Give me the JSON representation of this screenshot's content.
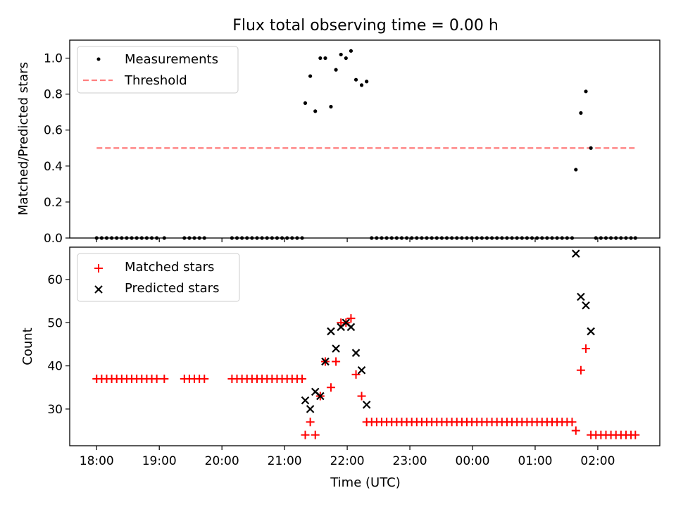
{
  "title": "Flux total observing time = 0.00 h",
  "colors": {
    "threshold": "#ff7f7f",
    "matched": "#ff0000",
    "predicted": "#000000",
    "measurement": "#000000"
  },
  "x_axis": {
    "label": "Time (UTC)",
    "unit": "hours since 18:00",
    "range": [
      -0.43,
      8.99
    ],
    "ticks": [
      {
        "v": 0,
        "label": "18:00"
      },
      {
        "v": 1,
        "label": "19:00"
      },
      {
        "v": 2,
        "label": "20:00"
      },
      {
        "v": 3,
        "label": "21:00"
      },
      {
        "v": 4,
        "label": "22:00"
      },
      {
        "v": 5,
        "label": "23:00"
      },
      {
        "v": 6,
        "label": "00:00"
      },
      {
        "v": 7,
        "label": "01:00"
      },
      {
        "v": 8,
        "label": "02:00"
      }
    ]
  },
  "chart_data": [
    {
      "type": "scatter",
      "ylabel": "Matched/Predicted stars",
      "ylim": [
        0,
        1.1
      ],
      "yticks": [
        0.0,
        0.2,
        0.4,
        0.6,
        0.8,
        1.0
      ],
      "ytick_labels": [
        "0.0",
        "0.2",
        "0.4",
        "0.6",
        "0.8",
        "1.0"
      ],
      "legend": {
        "position": "upper left",
        "entries": [
          "Measurements",
          "Threshold"
        ]
      },
      "threshold": {
        "name": "Threshold",
        "y": 0.5,
        "x": [
          0.0,
          8.6
        ]
      },
      "series": [
        {
          "name": "Measurements",
          "points": [
            [
              0.0,
              0
            ],
            [
              0.08,
              0
            ],
            [
              0.16,
              0
            ],
            [
              0.24,
              0
            ],
            [
              0.32,
              0
            ],
            [
              0.4,
              0
            ],
            [
              0.48,
              0
            ],
            [
              0.56,
              0
            ],
            [
              0.64,
              0
            ],
            [
              0.72,
              0
            ],
            [
              0.8,
              0
            ],
            [
              0.88,
              0
            ],
            [
              0.96,
              0
            ],
            [
              1.08,
              0
            ],
            [
              1.4,
              0
            ],
            [
              1.48,
              0
            ],
            [
              1.56,
              0
            ],
            [
              1.64,
              0
            ],
            [
              1.72,
              0
            ],
            [
              2.16,
              0
            ],
            [
              2.24,
              0
            ],
            [
              2.32,
              0
            ],
            [
              2.4,
              0
            ],
            [
              2.48,
              0
            ],
            [
              2.56,
              0
            ],
            [
              2.64,
              0
            ],
            [
              2.72,
              0
            ],
            [
              2.8,
              0
            ],
            [
              2.88,
              0
            ],
            [
              2.96,
              0
            ],
            [
              3.04,
              0
            ],
            [
              3.12,
              0
            ],
            [
              3.2,
              0
            ],
            [
              3.28,
              0
            ],
            [
              3.33,
              0.75
            ],
            [
              3.41,
              0.9
            ],
            [
              3.49,
              0.705
            ],
            [
              3.57,
              1.0
            ],
            [
              3.65,
              1.0
            ],
            [
              3.74,
              0.73
            ],
            [
              3.82,
              0.935
            ],
            [
              3.9,
              1.02
            ],
            [
              3.98,
              1.0
            ],
            [
              4.06,
              1.04
            ],
            [
              4.14,
              0.88
            ],
            [
              4.23,
              0.85
            ],
            [
              4.31,
              0.87
            ],
            [
              4.39,
              0
            ],
            [
              4.47,
              0
            ],
            [
              4.55,
              0
            ],
            [
              4.63,
              0
            ],
            [
              4.71,
              0
            ],
            [
              4.79,
              0
            ],
            [
              4.87,
              0
            ],
            [
              4.95,
              0
            ],
            [
              5.03,
              0
            ],
            [
              5.11,
              0
            ],
            [
              5.19,
              0
            ],
            [
              5.27,
              0
            ],
            [
              5.35,
              0
            ],
            [
              5.43,
              0
            ],
            [
              5.51,
              0
            ],
            [
              5.59,
              0
            ],
            [
              5.67,
              0
            ],
            [
              5.75,
              0
            ],
            [
              5.83,
              0
            ],
            [
              5.91,
              0
            ],
            [
              5.99,
              0
            ],
            [
              6.07,
              0
            ],
            [
              6.15,
              0
            ],
            [
              6.23,
              0
            ],
            [
              6.31,
              0
            ],
            [
              6.39,
              0
            ],
            [
              6.47,
              0
            ],
            [
              6.55,
              0
            ],
            [
              6.63,
              0
            ],
            [
              6.71,
              0
            ],
            [
              6.79,
              0
            ],
            [
              6.87,
              0
            ],
            [
              6.95,
              0
            ],
            [
              7.03,
              0
            ],
            [
              7.11,
              0
            ],
            [
              7.19,
              0
            ],
            [
              7.27,
              0
            ],
            [
              7.35,
              0
            ],
            [
              7.43,
              0
            ],
            [
              7.51,
              0
            ],
            [
              7.59,
              0
            ],
            [
              7.65,
              0.38
            ],
            [
              7.73,
              0.695
            ],
            [
              7.81,
              0.815
            ],
            [
              7.89,
              0.5
            ],
            [
              7.97,
              0
            ],
            [
              8.05,
              0
            ],
            [
              8.13,
              0
            ],
            [
              8.21,
              0
            ],
            [
              8.29,
              0
            ],
            [
              8.37,
              0
            ],
            [
              8.45,
              0
            ],
            [
              8.53,
              0
            ],
            [
              8.6,
              0
            ]
          ]
        }
      ]
    },
    {
      "type": "scatter",
      "ylabel": "Count",
      "ylim": [
        21.5,
        67.5
      ],
      "yticks": [
        30,
        40,
        50,
        60
      ],
      "ytick_labels": [
        "30",
        "40",
        "50",
        "60"
      ],
      "legend": {
        "position": "upper left",
        "entries": [
          "Matched stars",
          "Predicted stars"
        ]
      },
      "series": [
        {
          "name": "Matched stars",
          "points": [
            [
              0.0,
              37
            ],
            [
              0.08,
              37
            ],
            [
              0.16,
              37
            ],
            [
              0.24,
              37
            ],
            [
              0.32,
              37
            ],
            [
              0.4,
              37
            ],
            [
              0.48,
              37
            ],
            [
              0.56,
              37
            ],
            [
              0.64,
              37
            ],
            [
              0.72,
              37
            ],
            [
              0.8,
              37
            ],
            [
              0.88,
              37
            ],
            [
              0.96,
              37
            ],
            [
              1.08,
              37
            ],
            [
              1.4,
              37
            ],
            [
              1.48,
              37
            ],
            [
              1.56,
              37
            ],
            [
              1.64,
              37
            ],
            [
              1.72,
              37
            ],
            [
              2.16,
              37
            ],
            [
              2.24,
              37
            ],
            [
              2.32,
              37
            ],
            [
              2.4,
              37
            ],
            [
              2.48,
              37
            ],
            [
              2.56,
              37
            ],
            [
              2.64,
              37
            ],
            [
              2.72,
              37
            ],
            [
              2.8,
              37
            ],
            [
              2.88,
              37
            ],
            [
              2.96,
              37
            ],
            [
              3.04,
              37
            ],
            [
              3.12,
              37
            ],
            [
              3.2,
              37
            ],
            [
              3.28,
              37
            ],
            [
              3.33,
              24
            ],
            [
              3.41,
              27
            ],
            [
              3.49,
              24
            ],
            [
              3.57,
              33
            ],
            [
              3.65,
              41
            ],
            [
              3.74,
              35
            ],
            [
              3.82,
              41
            ],
            [
              3.9,
              50
            ],
            [
              3.98,
              50
            ],
            [
              4.06,
              51
            ],
            [
              4.14,
              38
            ],
            [
              4.23,
              33
            ],
            [
              4.31,
              27
            ],
            [
              4.39,
              27
            ],
            [
              4.47,
              27
            ],
            [
              4.55,
              27
            ],
            [
              4.63,
              27
            ],
            [
              4.71,
              27
            ],
            [
              4.79,
              27
            ],
            [
              4.87,
              27
            ],
            [
              4.95,
              27
            ],
            [
              5.03,
              27
            ],
            [
              5.11,
              27
            ],
            [
              5.19,
              27
            ],
            [
              5.27,
              27
            ],
            [
              5.35,
              27
            ],
            [
              5.43,
              27
            ],
            [
              5.51,
              27
            ],
            [
              5.59,
              27
            ],
            [
              5.67,
              27
            ],
            [
              5.75,
              27
            ],
            [
              5.83,
              27
            ],
            [
              5.91,
              27
            ],
            [
              5.99,
              27
            ],
            [
              6.07,
              27
            ],
            [
              6.15,
              27
            ],
            [
              6.23,
              27
            ],
            [
              6.31,
              27
            ],
            [
              6.39,
              27
            ],
            [
              6.47,
              27
            ],
            [
              6.55,
              27
            ],
            [
              6.63,
              27
            ],
            [
              6.71,
              27
            ],
            [
              6.79,
              27
            ],
            [
              6.87,
              27
            ],
            [
              6.95,
              27
            ],
            [
              7.03,
              27
            ],
            [
              7.11,
              27
            ],
            [
              7.19,
              27
            ],
            [
              7.27,
              27
            ],
            [
              7.35,
              27
            ],
            [
              7.43,
              27
            ],
            [
              7.51,
              27
            ],
            [
              7.59,
              27
            ],
            [
              7.65,
              25
            ],
            [
              7.73,
              39
            ],
            [
              7.81,
              44
            ],
            [
              7.89,
              24
            ],
            [
              7.97,
              24
            ],
            [
              8.05,
              24
            ],
            [
              8.13,
              24
            ],
            [
              8.21,
              24
            ],
            [
              8.29,
              24
            ],
            [
              8.37,
              24
            ],
            [
              8.45,
              24
            ],
            [
              8.53,
              24
            ],
            [
              8.6,
              24
            ]
          ]
        },
        {
          "name": "Predicted stars",
          "points": [
            [
              3.33,
              32
            ],
            [
              3.41,
              30
            ],
            [
              3.49,
              34
            ],
            [
              3.57,
              33
            ],
            [
              3.65,
              41
            ],
            [
              3.74,
              48
            ],
            [
              3.82,
              44
            ],
            [
              3.9,
              49
            ],
            [
              3.98,
              50
            ],
            [
              4.06,
              49
            ],
            [
              4.14,
              43
            ],
            [
              4.23,
              39
            ],
            [
              4.31,
              31
            ],
            [
              7.65,
              66
            ],
            [
              7.73,
              56
            ],
            [
              7.81,
              54
            ],
            [
              7.89,
              48
            ]
          ]
        }
      ]
    }
  ]
}
